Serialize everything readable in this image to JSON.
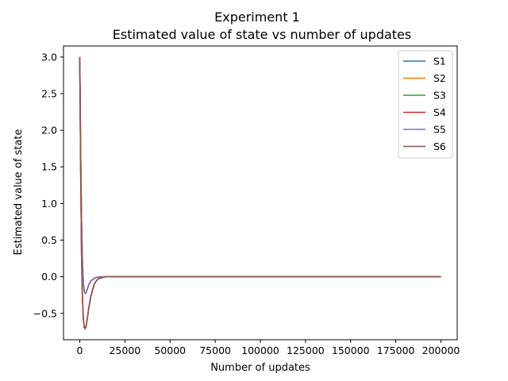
{
  "chart_data": {
    "type": "line",
    "title": "Experiment 1",
    "subtitle": "Estimated value of state vs number of updates",
    "xlabel": "Number of updates",
    "ylabel": "Estimated value of state",
    "xlim": [
      -9000,
      209000
    ],
    "ylim": [
      -0.86,
      3.15
    ],
    "xticks": [
      0,
      25000,
      50000,
      75000,
      100000,
      125000,
      150000,
      175000,
      200000
    ],
    "xtick_labels": [
      "0",
      "25000",
      "50000",
      "75000",
      "100000",
      "125000",
      "150000",
      "175000",
      "200000"
    ],
    "yticks": [
      -0.5,
      0.0,
      0.5,
      1.0,
      1.5,
      2.0,
      2.5,
      3.0
    ],
    "ytick_labels": [
      "−0.5",
      "0.0",
      "0.5",
      "1.0",
      "1.5",
      "2.0",
      "2.5",
      "3.0"
    ],
    "grid": false,
    "legend_position": "top-right",
    "series": [
      {
        "name": "S1",
        "color": "#1f77b4",
        "x": [
          0,
          500,
          1000,
          1500,
          2000,
          2500,
          3000,
          3500,
          4000,
          5000,
          6000,
          8000,
          10000,
          14000,
          20000,
          50000,
          100000,
          150000,
          200000
        ],
        "y": [
          3.0,
          1.7,
          0.75,
          0.2,
          -0.08,
          -0.2,
          -0.23,
          -0.22,
          -0.18,
          -0.11,
          -0.06,
          -0.02,
          -0.005,
          0.0,
          0.0,
          0.0,
          0.0,
          0.0,
          0.0
        ]
      },
      {
        "name": "S2",
        "color": "#ff7f0e",
        "x": [
          0,
          500,
          1000,
          1500,
          2000,
          2500,
          3000,
          3500,
          4000,
          5000,
          6000,
          8000,
          10000,
          14000,
          20000,
          50000,
          100000,
          150000,
          200000
        ],
        "y": [
          3.0,
          1.5,
          0.3,
          -0.3,
          -0.58,
          -0.69,
          -0.71,
          -0.68,
          -0.6,
          -0.43,
          -0.28,
          -0.1,
          -0.03,
          0.0,
          0.0,
          0.0,
          0.0,
          0.0,
          0.0
        ]
      },
      {
        "name": "S3",
        "color": "#2ca02c",
        "x": [
          0,
          500,
          1000,
          1500,
          2000,
          2500,
          3000,
          3500,
          4000,
          5000,
          6000,
          8000,
          10000,
          14000,
          20000,
          50000,
          100000,
          150000,
          200000
        ],
        "y": [
          3.0,
          1.7,
          0.75,
          0.2,
          -0.08,
          -0.2,
          -0.23,
          -0.22,
          -0.18,
          -0.11,
          -0.06,
          -0.02,
          -0.005,
          0.0,
          0.0,
          0.0,
          0.0,
          0.0,
          0.0
        ]
      },
      {
        "name": "S4",
        "color": "#d62728",
        "x": [
          0,
          500,
          1000,
          1500,
          2000,
          2500,
          3000,
          3500,
          4000,
          5000,
          6000,
          8000,
          10000,
          14000,
          20000,
          50000,
          100000,
          150000,
          200000
        ],
        "y": [
          3.0,
          1.5,
          0.3,
          -0.3,
          -0.58,
          -0.69,
          -0.71,
          -0.68,
          -0.6,
          -0.43,
          -0.28,
          -0.1,
          -0.03,
          0.0,
          0.0,
          0.0,
          0.0,
          0.0,
          0.0
        ]
      },
      {
        "name": "S5",
        "color": "#9467bd",
        "x": [
          0,
          500,
          1000,
          1500,
          2000,
          2500,
          3000,
          3500,
          4000,
          5000,
          6000,
          8000,
          10000,
          14000,
          20000,
          50000,
          100000,
          150000,
          200000
        ],
        "y": [
          3.0,
          1.7,
          0.75,
          0.2,
          -0.08,
          -0.2,
          -0.23,
          -0.22,
          -0.18,
          -0.11,
          -0.06,
          -0.02,
          -0.005,
          0.0,
          0.0,
          0.0,
          0.0,
          0.0,
          0.0
        ]
      },
      {
        "name": "S6",
        "color": "#8c564b",
        "x": [
          0,
          500,
          1000,
          1500,
          2000,
          2500,
          3000,
          3500,
          4000,
          5000,
          6000,
          8000,
          10000,
          14000,
          20000,
          50000,
          100000,
          150000,
          200000
        ],
        "y": [
          3.0,
          1.5,
          0.3,
          -0.3,
          -0.58,
          -0.69,
          -0.71,
          -0.68,
          -0.6,
          -0.43,
          -0.28,
          -0.1,
          -0.03,
          0.0,
          0.0,
          0.0,
          0.0,
          0.0,
          0.0
        ]
      }
    ]
  }
}
